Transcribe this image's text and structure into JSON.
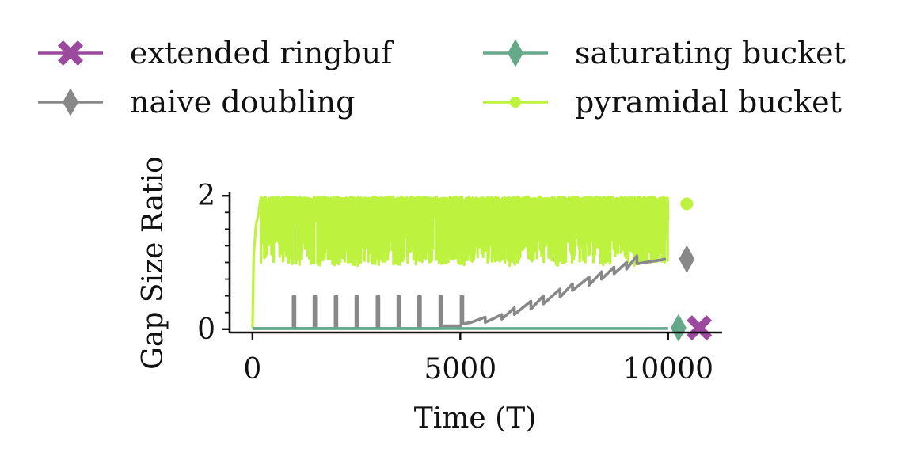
{
  "chart_data": {
    "type": "line",
    "xlabel": "Time (T)",
    "ylabel": "Gap Size Ratio",
    "xlim": [
      -550,
      11300
    ],
    "ylim": [
      -0.05,
      2.05
    ],
    "xticks": [
      0,
      5000,
      10000
    ],
    "xtick_labels": [
      "0",
      "5000",
      "10000"
    ],
    "yticks": [
      0,
      2
    ],
    "ytick_labels": [
      "0",
      "2"
    ],
    "y_minor_ticks": [
      0.25,
      0.5,
      0.75,
      1.0,
      1.25,
      1.5,
      1.75
    ],
    "grid": false,
    "legend_position": "top",
    "series": [
      {
        "name": "extended ringbuf",
        "color": "#9b4a9e",
        "marker": "X",
        "x": [],
        "y": [],
        "end_marker": {
          "x": 10750,
          "y": 0.02
        }
      },
      {
        "name": "naive doubling",
        "color": "#888888",
        "marker": "thin_diamond",
        "x": [
          0,
          980,
          980,
          1020,
          1020,
          1480,
          1480,
          1520,
          1520,
          1990,
          1990,
          2030,
          2030,
          2490,
          2490,
          2530,
          2530,
          3000,
          3000,
          3040,
          3040,
          3500,
          3500,
          3540,
          3540,
          4000,
          4000,
          4040,
          4040,
          4510,
          4510,
          4550,
          4550,
          5020,
          5020,
          5060,
          5060,
          5250,
          5600,
          5600,
          6000,
          6000,
          6300,
          6300,
          6700,
          6700,
          7000,
          7000,
          7400,
          7400,
          7700,
          7700,
          8100,
          8100,
          8400,
          8400,
          8700,
          8700,
          9000,
          9000,
          9250,
          9250,
          9950
        ],
        "y": [
          0.01,
          0.01,
          0.49,
          0.49,
          0.01,
          0.01,
          0.49,
          0.49,
          0.01,
          0.01,
          0.49,
          0.49,
          0.01,
          0.01,
          0.49,
          0.49,
          0.01,
          0.01,
          0.49,
          0.49,
          0.01,
          0.01,
          0.49,
          0.49,
          0.01,
          0.01,
          0.49,
          0.49,
          0.01,
          0.01,
          0.49,
          0.49,
          0.05,
          0.05,
          0.49,
          0.49,
          0.08,
          0.1,
          0.18,
          0.1,
          0.22,
          0.15,
          0.32,
          0.22,
          0.42,
          0.3,
          0.5,
          0.38,
          0.6,
          0.48,
          0.68,
          0.58,
          0.78,
          0.66,
          0.86,
          0.75,
          0.93,
          0.83,
          1.0,
          0.9,
          1.1,
          0.98,
          1.05
        ],
        "end_marker": {
          "x": 10450,
          "y": 1.05
        }
      },
      {
        "name": "saturating bucket",
        "color": "#66a88a",
        "marker": "thin_diamond",
        "x": [
          0,
          10000
        ],
        "y": [
          0.01,
          0.01
        ],
        "end_marker": {
          "x": 10250,
          "y": 0.02
        }
      },
      {
        "name": "pyramidal bucket",
        "color": "#bdf33f",
        "marker": "o",
        "x": [],
        "y": [],
        "end_marker": {
          "x": 10450,
          "y": 1.88
        }
      }
    ]
  }
}
